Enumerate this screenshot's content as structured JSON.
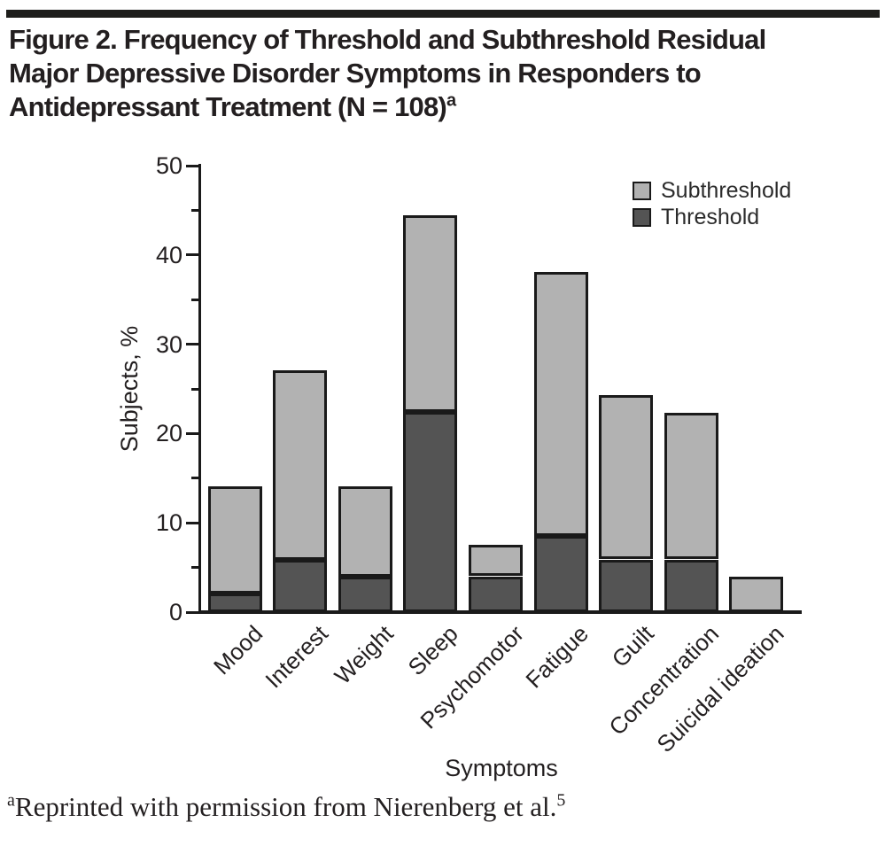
{
  "title": {
    "lines": [
      "Figure 2. Frequency of Threshold and Subthreshold Residual",
      "Major Depressive Disorder Symptoms in Responders to",
      "Antidepressant Treatment (N = 108)"
    ],
    "superscript": "a"
  },
  "footnote": {
    "superscript": "a",
    "text": "Reprinted with permission from Nierenberg et al.",
    "ref_superscript": "5"
  },
  "chart_data": {
    "type": "bar",
    "stacked": true,
    "categories": [
      "Mood",
      "Interest",
      "Weight",
      "Sleep",
      "Psychomotor",
      "Fatigue",
      "Guilt",
      "Concentration",
      "Suicidal ideation"
    ],
    "series": [
      {
        "name": "Threshold",
        "color": "#545454",
        "values": [
          2.1,
          5.9,
          4.0,
          22.4,
          4.0,
          8.5,
          5.9,
          5.9,
          0.0
        ]
      },
      {
        "name": "Subthreshold",
        "color": "#b2b2b2",
        "values": [
          12.0,
          21.2,
          10.1,
          22.0,
          3.5,
          29.6,
          18.4,
          16.4,
          4.0
        ]
      }
    ],
    "totals": [
      14.1,
      27.1,
      14.1,
      44.4,
      7.5,
      38.1,
      24.3,
      22.3,
      4.0
    ],
    "xlabel": "Symptoms",
    "ylabel": "Subjects, %",
    "ylim": [
      0,
      50
    ],
    "yticks_major": [
      0,
      10,
      20,
      30,
      40,
      50
    ],
    "yticks_minor": [
      5,
      15,
      25,
      35,
      45
    ],
    "grid": false,
    "legend": {
      "position": "top-right",
      "entries": [
        {
          "label": "Subthreshold",
          "color": "#b2b2b2"
        },
        {
          "label": "Threshold",
          "color": "#545454"
        }
      ]
    }
  }
}
